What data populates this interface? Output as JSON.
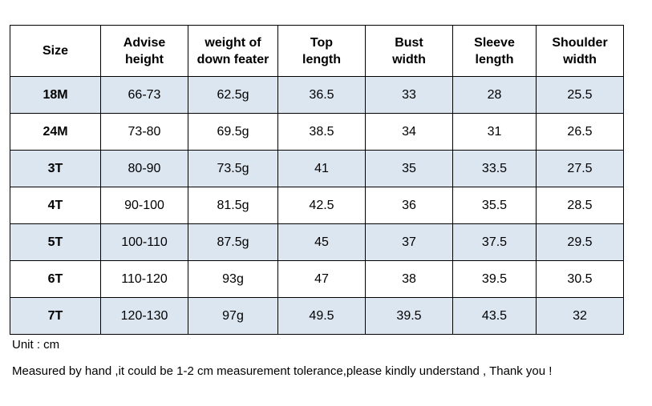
{
  "table": {
    "headers": [
      "Size",
      "Advise\nheight",
      "weight of\ndown feater",
      "Top\nlength",
      "Bust\nwidth",
      "Sleeve\nlength",
      "Shoulder\nwidth"
    ],
    "rows": [
      [
        "18M",
        "66-73",
        "62.5g",
        "36.5",
        "33",
        "28",
        "25.5"
      ],
      [
        "24M",
        "73-80",
        "69.5g",
        "38.5",
        "34",
        "31",
        "26.5"
      ],
      [
        "3T",
        "80-90",
        "73.5g",
        "41",
        "35",
        "33.5",
        "27.5"
      ],
      [
        "4T",
        "90-100",
        "81.5g",
        "42.5",
        "36",
        "35.5",
        "28.5"
      ],
      [
        "5T",
        "100-110",
        "87.5g",
        "45",
        "37",
        "37.5",
        "29.5"
      ],
      [
        "6T",
        "110-120",
        "93g",
        "47",
        "38",
        "39.5",
        "30.5"
      ],
      [
        "7T",
        "120-130",
        "97g",
        "49.5",
        "39.5",
        "43.5",
        "32"
      ]
    ]
  },
  "notes": {
    "unit": "Unit : cm",
    "measurement": "Measured by hand ,it could be 1-2 cm measurement tolerance,please kindly understand , Thank you !"
  },
  "colors": {
    "shaded_row": "#dce6f1",
    "plain_row": "#ffffff",
    "border": "#000000"
  }
}
